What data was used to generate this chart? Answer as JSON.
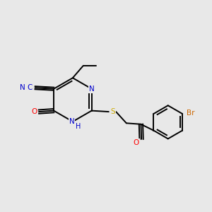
{
  "bg_color": "#e8e8e8",
  "bond_color": "#000000",
  "atom_colors": {
    "N": "#0000cc",
    "O": "#ff0000",
    "S": "#ccaa00",
    "Br": "#cc6600",
    "C_cyan": "#0000cc",
    "C": "#000000"
  },
  "figsize": [
    3.0,
    3.0
  ],
  "dpi": 100,
  "lw": 1.4,
  "fontsize": 7.5
}
